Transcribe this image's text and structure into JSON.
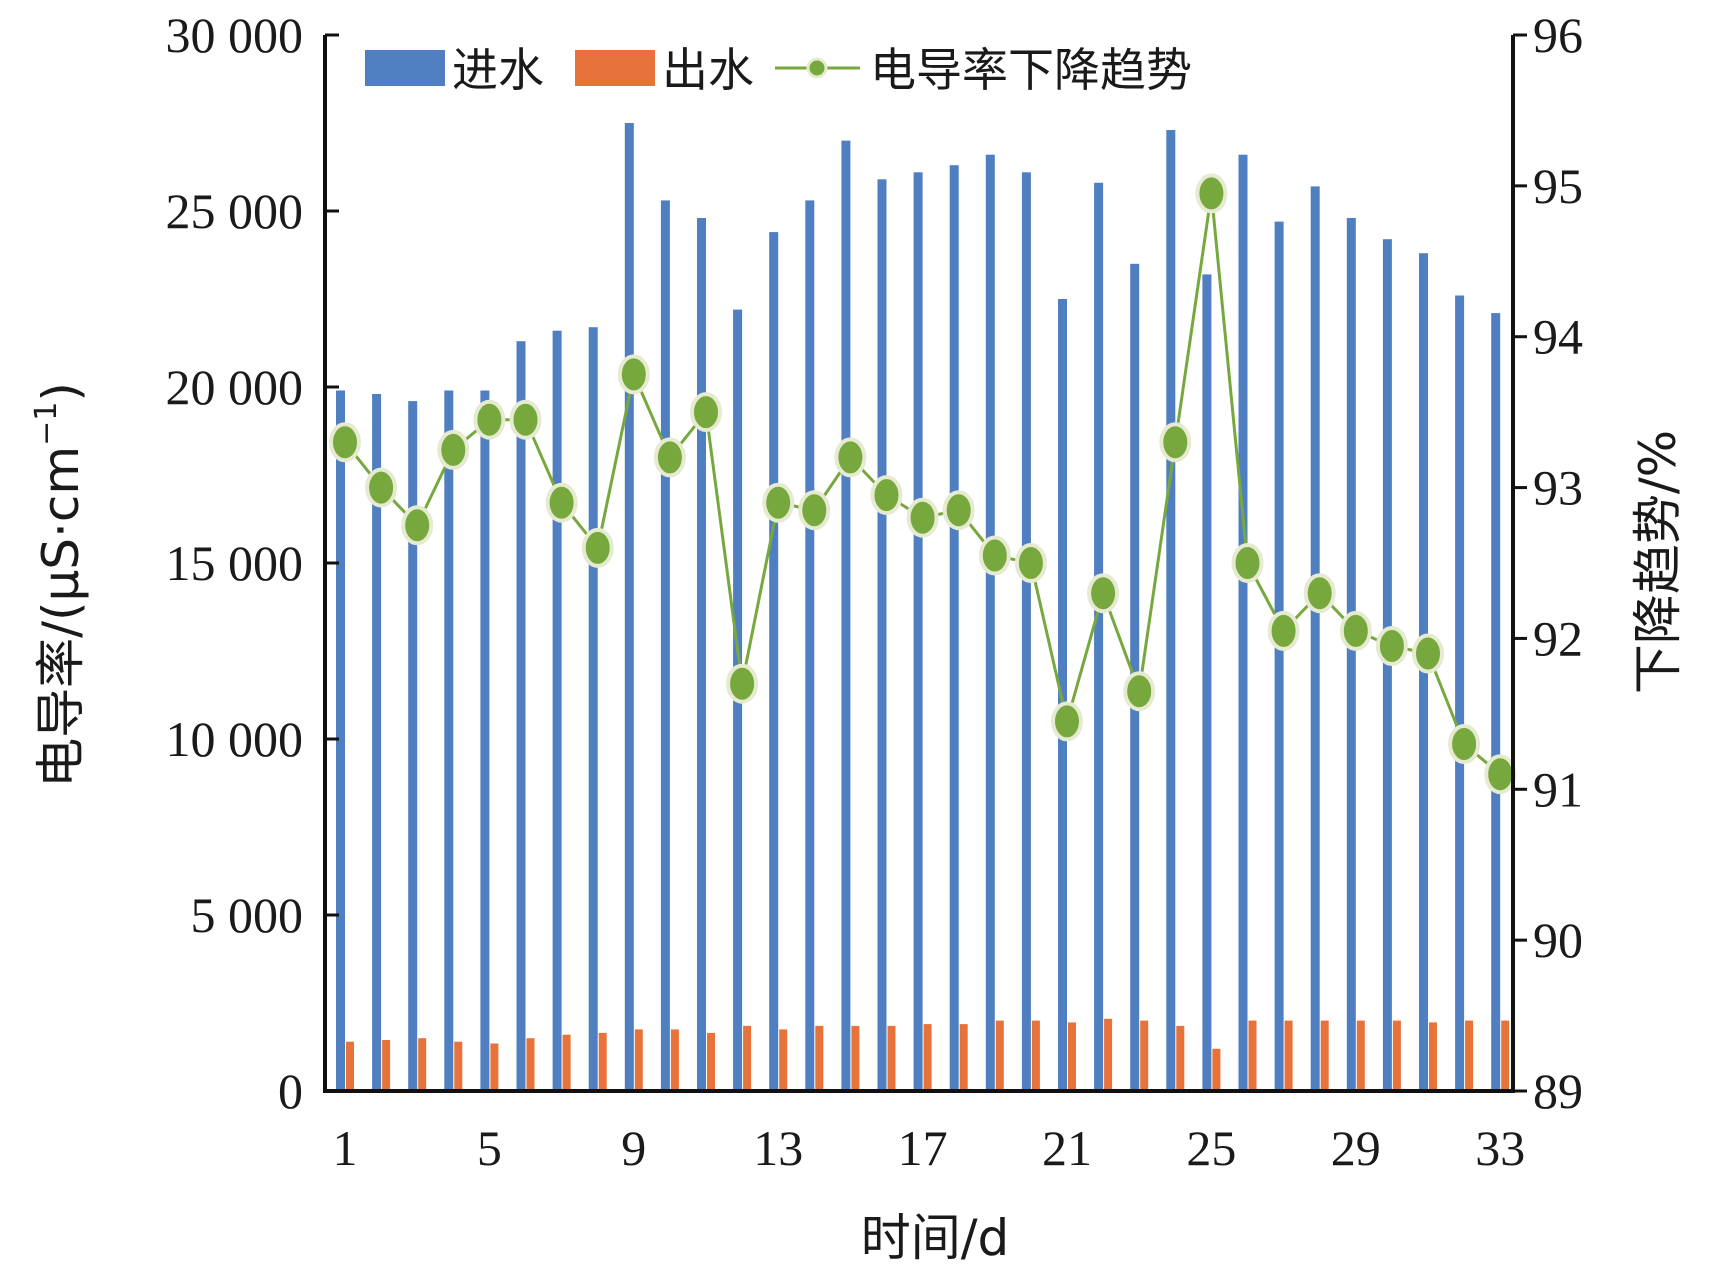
{
  "chart_data": {
    "type": "bar",
    "title": "",
    "xlabel": "时间/d",
    "ylabel": "电导率/(μS·cm",
    "ylabel_sup": "−1",
    "ylabel_close": ")",
    "y2label": "下降趋势/%",
    "x": [
      1,
      2,
      3,
      4,
      5,
      6,
      7,
      8,
      9,
      10,
      11,
      12,
      13,
      14,
      15,
      16,
      17,
      18,
      19,
      20,
      21,
      22,
      23,
      24,
      25,
      26,
      27,
      28,
      29,
      30,
      31,
      32,
      33
    ],
    "x_tick_labels": [
      "1",
      "5",
      "9",
      "13",
      "17",
      "21",
      "25",
      "29",
      "33"
    ],
    "ylim": [
      0,
      30000
    ],
    "y_ticks": [
      0,
      5000,
      10000,
      15000,
      20000,
      25000,
      30000
    ],
    "y_tick_labels": [
      "0",
      "5 000",
      "10 000",
      "15 000",
      "20 000",
      "25 000",
      "30 000"
    ],
    "y2lim": [
      89,
      96
    ],
    "y2_ticks": [
      89,
      90,
      91,
      92,
      93,
      94,
      95,
      96
    ],
    "y2_tick_labels": [
      "89",
      "90",
      "91",
      "92",
      "93",
      "94",
      "95",
      "96"
    ],
    "grid": false,
    "legend_position": "top-left",
    "series": [
      {
        "name": "进水",
        "kind": "bar",
        "axis": "left",
        "color": "#4f7fc0",
        "values": [
          19900,
          19800,
          19600,
          19900,
          19900,
          21300,
          21600,
          21700,
          27500,
          25300,
          24800,
          22200,
          24400,
          25300,
          27000,
          25900,
          26100,
          26300,
          26600,
          26100,
          22500,
          25800,
          23500,
          27300,
          23200,
          26600,
          24700,
          25700,
          24800,
          24200,
          23800,
          22600,
          22100
        ]
      },
      {
        "name": "出水",
        "kind": "bar",
        "axis": "left",
        "color": "#e8733a",
        "values": [
          1400,
          1450,
          1500,
          1400,
          1350,
          1500,
          1600,
          1650,
          1750,
          1750,
          1650,
          1850,
          1750,
          1850,
          1850,
          1850,
          1900,
          1900,
          2000,
          2000,
          1950,
          2050,
          2000,
          1850,
          1200,
          2000,
          2000,
          2000,
          2000,
          2000,
          1950,
          2000,
          2000
        ]
      },
      {
        "name": "电导率下降趋势",
        "kind": "line",
        "axis": "right",
        "color": "#77a83e",
        "marker_color": "#77a83e",
        "values": [
          93.3,
          93.0,
          92.75,
          93.25,
          93.45,
          93.45,
          92.9,
          92.6,
          93.75,
          93.2,
          93.5,
          91.7,
          92.9,
          92.85,
          93.2,
          92.95,
          92.8,
          92.85,
          92.55,
          92.5,
          91.45,
          92.3,
          91.65,
          93.3,
          94.95,
          92.5,
          92.05,
          92.3,
          92.05,
          91.95,
          91.9,
          91.3,
          91.1
        ]
      }
    ]
  }
}
